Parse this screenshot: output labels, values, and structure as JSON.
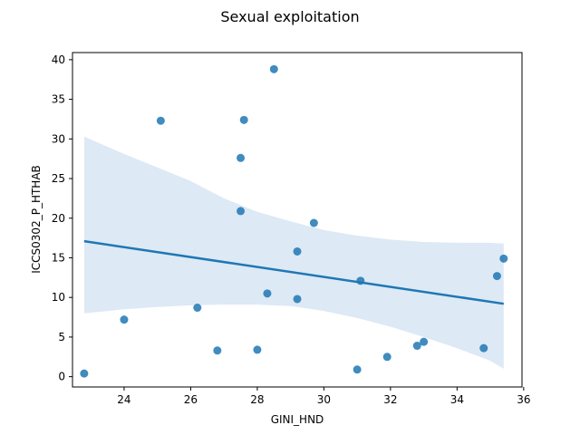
{
  "chart_data": {
    "type": "scatter",
    "title": "Sexual exploitation",
    "xlabel": "GINI_HND",
    "ylabel": "ICCS0302_P_HTHAB",
    "xlim": [
      22.45,
      35.95
    ],
    "ylim": [
      -1.3,
      40.9
    ],
    "xticks": [
      24,
      26,
      28,
      30,
      32,
      34,
      36
    ],
    "yticks": [
      0,
      5,
      10,
      15,
      20,
      25,
      30,
      35,
      40
    ],
    "grid": false,
    "colors": {
      "points": "#1f77b4",
      "line": "#1f77b4",
      "band": "#c6dbef"
    },
    "points": [
      {
        "x": 22.8,
        "y": 0.4
      },
      {
        "x": 24.0,
        "y": 7.2
      },
      {
        "x": 25.1,
        "y": 32.3
      },
      {
        "x": 26.2,
        "y": 8.7
      },
      {
        "x": 26.8,
        "y": 3.3
      },
      {
        "x": 27.5,
        "y": 27.6
      },
      {
        "x": 27.5,
        "y": 20.9
      },
      {
        "x": 27.6,
        "y": 32.4
      },
      {
        "x": 28.0,
        "y": 3.4
      },
      {
        "x": 28.3,
        "y": 10.5
      },
      {
        "x": 28.5,
        "y": 38.8
      },
      {
        "x": 29.2,
        "y": 15.8
      },
      {
        "x": 29.2,
        "y": 9.8
      },
      {
        "x": 29.7,
        "y": 19.4
      },
      {
        "x": 31.0,
        "y": 0.9
      },
      {
        "x": 31.1,
        "y": 12.1
      },
      {
        "x": 31.9,
        "y": 2.5
      },
      {
        "x": 32.8,
        "y": 3.9
      },
      {
        "x": 33.0,
        "y": 4.4
      },
      {
        "x": 34.8,
        "y": 3.6
      },
      {
        "x": 35.2,
        "y": 12.7
      },
      {
        "x": 35.4,
        "y": 14.9
      }
    ],
    "regression": {
      "x": [
        22.8,
        35.4
      ],
      "y": [
        17.1,
        9.2
      ]
    },
    "confidence_band": {
      "x": [
        22.8,
        24.0,
        25.0,
        26.0,
        27.0,
        28.0,
        29.0,
        30.0,
        31.0,
        32.0,
        33.0,
        34.0,
        35.0,
        35.4
      ],
      "upper": [
        30.3,
        28.1,
        26.4,
        24.7,
        22.5,
        20.8,
        19.6,
        18.5,
        17.8,
        17.3,
        17.0,
        16.9,
        16.9,
        16.8
      ],
      "lower": [
        8.0,
        8.5,
        8.8,
        9.0,
        9.1,
        9.1,
        8.9,
        8.3,
        7.4,
        6.3,
        5.0,
        3.6,
        2.0,
        1.0
      ]
    }
  }
}
